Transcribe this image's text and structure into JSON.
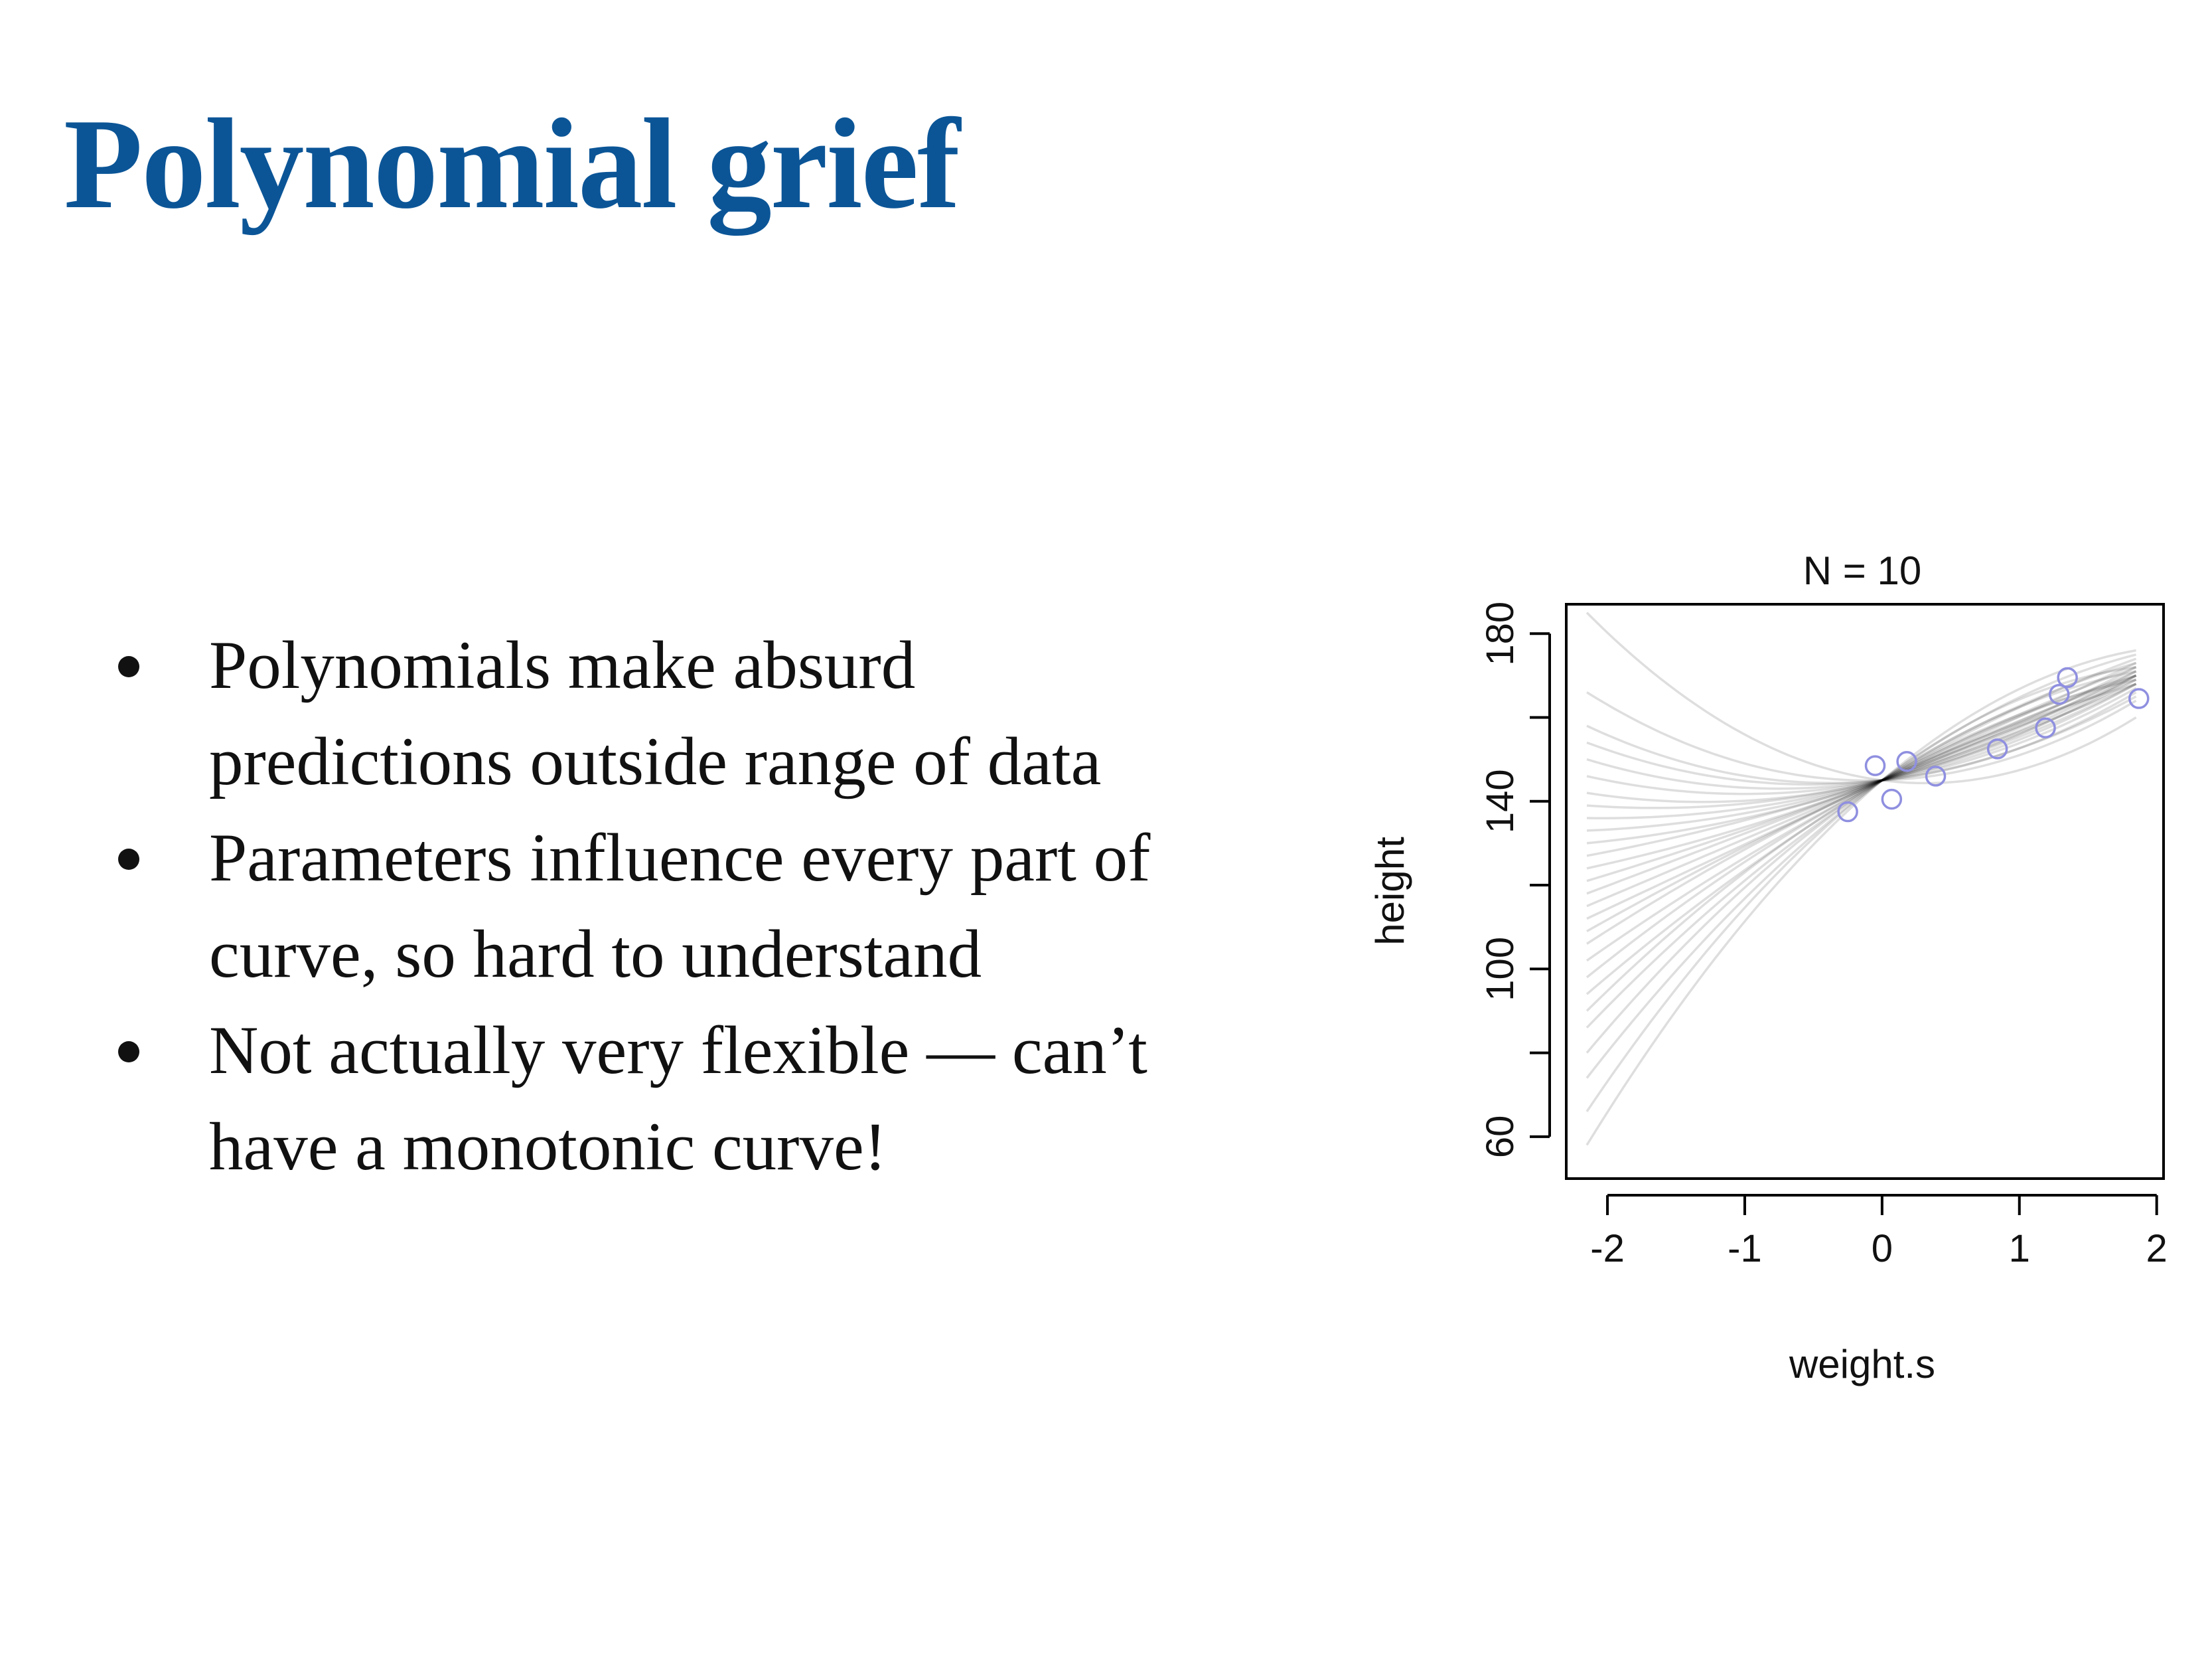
{
  "slide": {
    "title": "Polynomial grief",
    "accent_color": "#0b5597",
    "bullets": [
      {
        "line1": "Polynomials make absurd",
        "line2": "predictions outside range of data"
      },
      {
        "line1": "Parameters influence every part of",
        "line2": "curve, so hard to understand"
      },
      {
        "line1": "Not actually very flexible — can’t",
        "line2": "have a monotonic curve!"
      }
    ]
  },
  "chart_data": {
    "type": "line",
    "title": "N = 10",
    "xlabel": "weight.s",
    "ylabel": "height",
    "xlim": [
      -2.3,
      2.05
    ],
    "ylim": [
      50,
      187
    ],
    "x_ticks": [
      "-2",
      "-1",
      "0",
      "1",
      "2"
    ],
    "y_ticks": [
      "60",
      "100",
      "140",
      "180"
    ],
    "y_minor_ticks": [
      80,
      120,
      160
    ],
    "grid": false,
    "point_color": "#8f8fe0",
    "line_color": "#000000",
    "points": [
      {
        "x": -0.25,
        "y": 137.5
      },
      {
        "x": -0.05,
        "y": 148.5
      },
      {
        "x": 0.07,
        "y": 140.5
      },
      {
        "x": 0.18,
        "y": 149.5
      },
      {
        "x": 0.39,
        "y": 146.0
      },
      {
        "x": 0.84,
        "y": 152.5
      },
      {
        "x": 1.19,
        "y": 157.5
      },
      {
        "x": 1.29,
        "y": 165.5
      },
      {
        "x": 1.35,
        "y": 169.5
      },
      {
        "x": 1.87,
        "y": 164.5
      }
    ],
    "curve_x_range": [
      -2.15,
      1.85
    ],
    "curves": [
      {
        "y_left": 185,
        "y_right": 160
      },
      {
        "y_left": 166,
        "y_right": 164
      },
      {
        "y_left": 158,
        "y_right": 166
      },
      {
        "y_left": 154,
        "y_right": 165
      },
      {
        "y_left": 150,
        "y_right": 167
      },
      {
        "y_left": 146,
        "y_right": 168
      },
      {
        "y_left": 142,
        "y_right": 170
      },
      {
        "y_left": 139,
        "y_right": 168
      },
      {
        "y_left": 136,
        "y_right": 169
      },
      {
        "y_left": 133,
        "y_right": 170
      },
      {
        "y_left": 130,
        "y_right": 171
      },
      {
        "y_left": 127,
        "y_right": 168
      },
      {
        "y_left": 124,
        "y_right": 172
      },
      {
        "y_left": 121,
        "y_right": 170
      },
      {
        "y_left": 118,
        "y_right": 169
      },
      {
        "y_left": 115,
        "y_right": 171
      },
      {
        "y_left": 112,
        "y_right": 173
      },
      {
        "y_left": 109,
        "y_right": 170
      },
      {
        "y_left": 106,
        "y_right": 168
      },
      {
        "y_left": 102,
        "y_right": 172
      },
      {
        "y_left": 98,
        "y_right": 170
      },
      {
        "y_left": 94,
        "y_right": 174
      },
      {
        "y_left": 90,
        "y_right": 169
      },
      {
        "y_left": 86,
        "y_right": 173
      },
      {
        "y_left": 80,
        "y_right": 171
      },
      {
        "y_left": 74,
        "y_right": 175
      },
      {
        "y_left": 66,
        "y_right": 172
      },
      {
        "y_left": 58,
        "y_right": 176
      }
    ]
  }
}
